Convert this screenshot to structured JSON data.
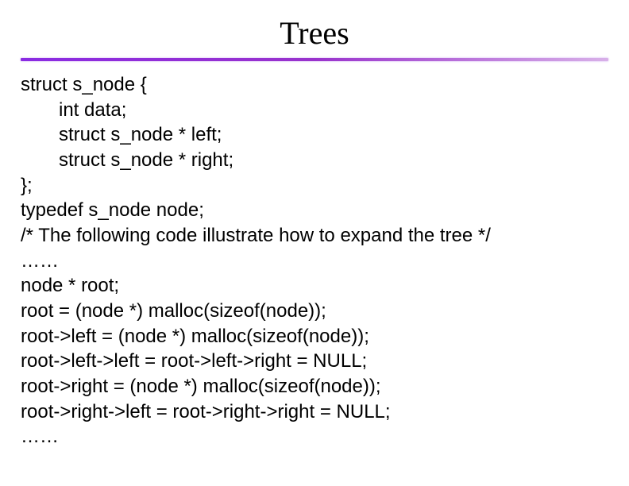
{
  "title": "Trees",
  "divider_gradient": [
    "#8a2be2",
    "#9932cc",
    "#d8b0e8"
  ],
  "background_color": "#ffffff",
  "title_font": "Times New Roman",
  "title_fontsize": 40,
  "code_font": "Arial",
  "code_fontsize": 24,
  "code_color": "#000000",
  "code": {
    "l0": "struct s_node {",
    "l1": "int data;",
    "l2": "struct s_node * left;",
    "l3": "struct s_node * right;",
    "l4": "};",
    "l5": "typedef s_node node;",
    "l6": "/* The following code illustrate how to expand the tree */",
    "l7": "……",
    "l8": "node * root;",
    "l9": "root = (node *) malloc(sizeof(node));",
    "l10": "root->left = (node *) malloc(sizeof(node));",
    "l11": "root->left->left = root->left->right = NULL;",
    "l12": "root->right = (node *) malloc(sizeof(node));",
    "l13": "root->right->left = root->right->right = NULL;",
    "l14": "……"
  }
}
